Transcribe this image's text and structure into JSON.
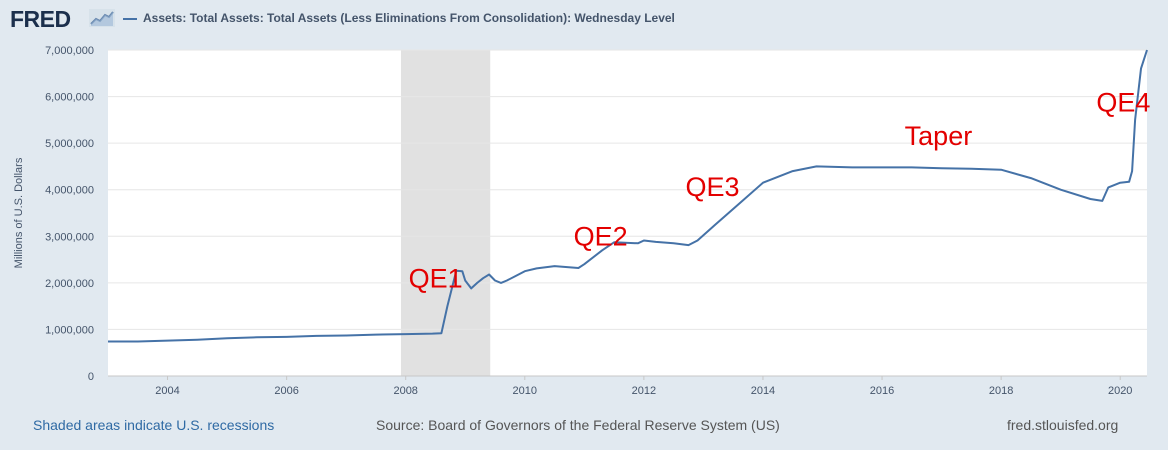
{
  "header": {
    "logo_text": "FRED",
    "legend_title": "Assets: Total Assets: Total Assets (Less Eliminations From Consolidation): Wednesday Level"
  },
  "footer": {
    "recession_note": "Shaded areas indicate U.S. recessions",
    "source": "Source: Board of Governors of the Federal Reserve System (US)",
    "site": "fred.stlouisfed.org"
  },
  "colors": {
    "series": "#4572a7",
    "annotation": "#e30000",
    "recession": "#e1e1e1",
    "grid": "#e6e6e6"
  },
  "chart_data": {
    "type": "line",
    "title": "Assets: Total Assets: Total Assets (Less Eliminations From Consolidation): Wednesday Level",
    "xlabel": "",
    "ylabel": "Millions of U.S. Dollars",
    "xlim": [
      2003.0,
      2020.45
    ],
    "ylim": [
      0,
      7000000
    ],
    "x_ticks": [
      2004,
      2006,
      2008,
      2010,
      2012,
      2014,
      2016,
      2018,
      2020
    ],
    "y_ticks": [
      0,
      1000000,
      2000000,
      3000000,
      4000000,
      5000000,
      6000000,
      7000000
    ],
    "y_tick_labels": [
      "0",
      "1,000,000",
      "2,000,000",
      "3,000,000",
      "4,000,000",
      "5,000,000",
      "6,000,000",
      "7,000,000"
    ],
    "grid": true,
    "recessions": [
      [
        2007.92,
        2009.42
      ]
    ],
    "annotations": [
      {
        "text": "QE1",
        "x": 2008.05,
        "y": 1900000
      },
      {
        "text": "QE2",
        "x": 2010.82,
        "y": 2800000
      },
      {
        "text": "QE3",
        "x": 2012.7,
        "y": 3860000
      },
      {
        "text": "Taper",
        "x": 2016.38,
        "y": 4960000
      },
      {
        "text": "QE4",
        "x": 2019.6,
        "y": 5680000
      }
    ],
    "series": [
      {
        "name": "Total Assets",
        "x": [
          2003.0,
          2003.5,
          2004.0,
          2004.5,
          2005.0,
          2005.5,
          2006.0,
          2006.5,
          2007.0,
          2007.5,
          2008.0,
          2008.45,
          2008.6,
          2008.7,
          2008.85,
          2008.95,
          2009.0,
          2009.1,
          2009.2,
          2009.3,
          2009.4,
          2009.5,
          2009.6,
          2009.7,
          2009.85,
          2010.0,
          2010.2,
          2010.5,
          2010.9,
          2011.0,
          2011.3,
          2011.5,
          2011.9,
          2012.0,
          2012.2,
          2012.5,
          2012.75,
          2012.9,
          2013.2,
          2013.6,
          2014.0,
          2014.5,
          2014.9,
          2015.5,
          2016.0,
          2016.5,
          2017.0,
          2017.5,
          2018.0,
          2018.5,
          2019.0,
          2019.5,
          2019.7,
          2019.8,
          2020.0,
          2020.15,
          2020.2,
          2020.25,
          2020.35,
          2020.45
        ],
        "y": [
          740000,
          740000,
          760000,
          780000,
          810000,
          830000,
          840000,
          860000,
          870000,
          890000,
          900000,
          910000,
          920000,
          1500000,
          2260000,
          2250000,
          2050000,
          1880000,
          2000000,
          2100000,
          2180000,
          2050000,
          2000000,
          2050000,
          2150000,
          2250000,
          2310000,
          2360000,
          2320000,
          2400000,
          2700000,
          2870000,
          2850000,
          2910000,
          2880000,
          2850000,
          2810000,
          2910000,
          3250000,
          3700000,
          4150000,
          4400000,
          4500000,
          4480000,
          4480000,
          4480000,
          4460000,
          4450000,
          4430000,
          4250000,
          4000000,
          3800000,
          3760000,
          4050000,
          4150000,
          4170000,
          4400000,
          5500000,
          6600000,
          7000000
        ]
      }
    ]
  }
}
